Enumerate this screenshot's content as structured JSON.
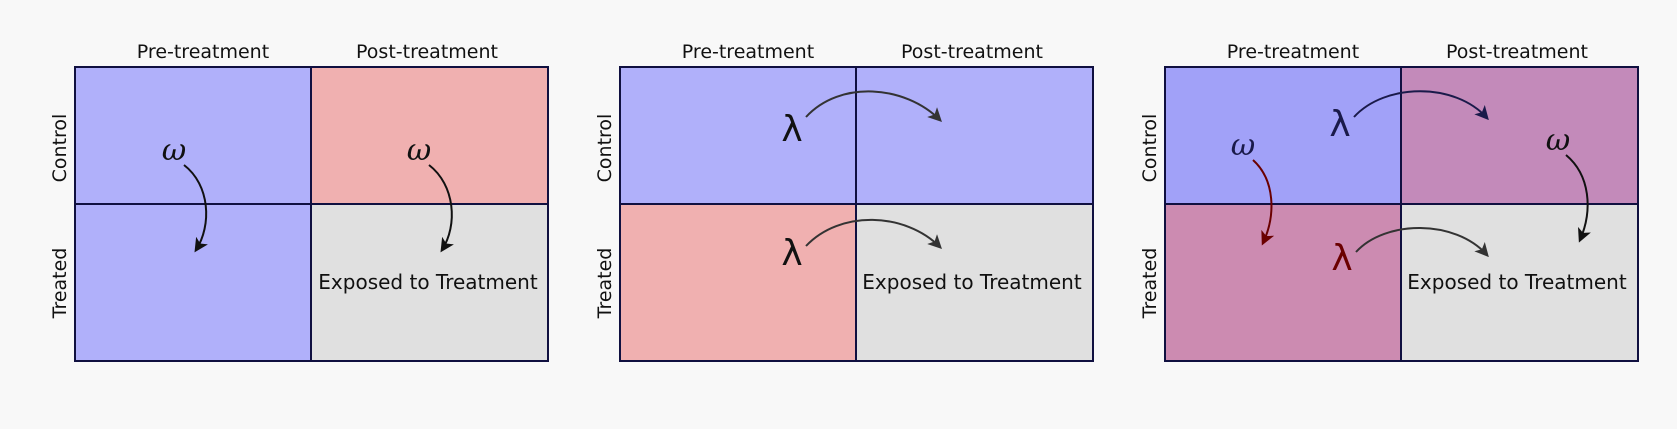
{
  "colors": {
    "background": "#f8f8f8",
    "blue_cell": "#b0b0fa",
    "red_cell": "#f0b0b0",
    "gray_cell": "#e0e0e0",
    "purple_cell": "#c38aba",
    "mauve_cell": "#cc8bb1",
    "deep_blue_cell": "#a1a1f8",
    "grid_line": "#101040",
    "dark_red": "#6a0000",
    "navy": "#1a1a4a"
  },
  "panels": [
    {
      "col_headers": [
        "Pre-treatment",
        "Post-treatment"
      ],
      "row_headers": [
        "Control",
        "Treated"
      ],
      "cells": {
        "control_pre": {
          "color_key": "blue_cell",
          "text": ""
        },
        "control_post": {
          "color_key": "red_cell",
          "text": ""
        },
        "treated_pre": {
          "color_key": "blue_cell",
          "text": ""
        },
        "treated_post": {
          "color_key": "gray_cell",
          "text": "Exposed to Treatment"
        }
      },
      "symbols": [
        {
          "glyph": "ω",
          "kind": "omega",
          "cell": "control_pre",
          "color_key": "grid_line"
        },
        {
          "glyph": "ω",
          "kind": "omega",
          "cell": "control_post",
          "color_key": "grid_line"
        }
      ]
    },
    {
      "col_headers": [
        "Pre-treatment",
        "Post-treatment"
      ],
      "row_headers": [
        "Control",
        "Treated"
      ],
      "cells": {
        "control_pre": {
          "color_key": "blue_cell",
          "text": ""
        },
        "control_post": {
          "color_key": "blue_cell",
          "text": ""
        },
        "treated_pre": {
          "color_key": "red_cell",
          "text": ""
        },
        "treated_post": {
          "color_key": "gray_cell",
          "text": "Exposed to Treatment"
        }
      },
      "symbols": [
        {
          "glyph": "λ",
          "kind": "lambda",
          "cell": "control_pre",
          "color_key": "grid_line"
        },
        {
          "glyph": "λ",
          "kind": "lambda",
          "cell": "treated_pre",
          "color_key": "grid_line"
        }
      ]
    },
    {
      "col_headers": [
        "Pre-treatment",
        "Post-treatment"
      ],
      "row_headers": [
        "Control",
        "Treated"
      ],
      "cells": {
        "control_pre": {
          "color_key": "deep_blue_cell",
          "text": ""
        },
        "control_post": {
          "color_key": "purple_cell",
          "text": ""
        },
        "treated_pre": {
          "color_key": "mauve_cell",
          "text": ""
        },
        "treated_post": {
          "color_key": "gray_cell",
          "text": "Exposed to Treatment"
        }
      },
      "symbols": [
        {
          "glyph": "ω",
          "kind": "omega",
          "cell": "control_pre",
          "color_key": "navy"
        },
        {
          "glyph": "ω",
          "kind": "omega",
          "cell": "control_post",
          "color_key": "grid_line"
        },
        {
          "glyph": "λ",
          "kind": "lambda",
          "cell": "control_pre",
          "color_key": "navy"
        },
        {
          "glyph": "λ",
          "kind": "lambda",
          "cell": "treated_pre",
          "color_key": "dark_red"
        }
      ]
    }
  ]
}
